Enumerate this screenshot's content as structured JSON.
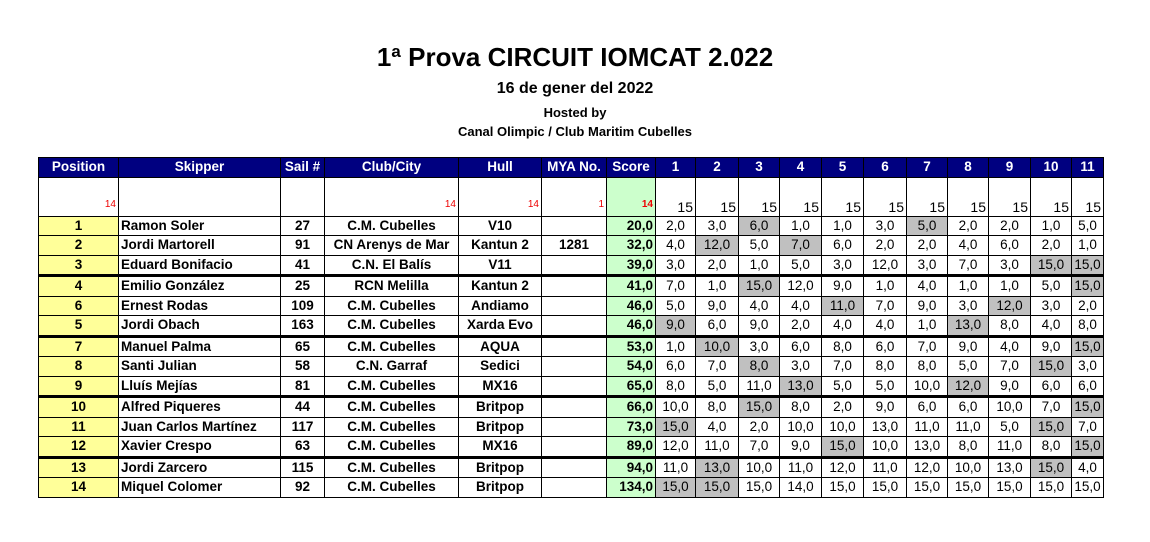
{
  "header": {
    "title": "1ª Prova CIRCUIT IOMCAT 2.022",
    "date": "16 de gener del 2022",
    "hosted_label": "Hosted by",
    "host": "Canal Olimpic / Club Maritim Cubelles"
  },
  "columns": [
    "Position",
    "Skipper",
    "Sail #",
    "Club/City",
    "Hull",
    "MYA No.",
    "Score",
    "1",
    "2",
    "3",
    "4",
    "5",
    "6",
    "7",
    "8",
    "9",
    "10",
    "11"
  ],
  "subheader": {
    "position": "14",
    "club": "14",
    "hull": "14",
    "mya": "1",
    "score": "14",
    "races": [
      "15",
      "15",
      "15",
      "15",
      "15",
      "15",
      "15",
      "15",
      "15",
      "15",
      "15"
    ]
  },
  "rows": [
    {
      "pos": "1",
      "skipper": "Ramon Soler",
      "sail": "27",
      "club": "C.M. Cubelles",
      "hull": "V10",
      "mya": "",
      "score": "20,0",
      "races": [
        "2,0",
        "3,0",
        "6,0",
        "1,0",
        "1,0",
        "3,0",
        "5,0",
        "2,0",
        "2,0",
        "1,0",
        "5,0"
      ],
      "disc": [
        2,
        6
      ]
    },
    {
      "pos": "2",
      "skipper": "Jordi Martorell",
      "sail": "91",
      "club": "CN Arenys de Mar",
      "hull": "Kantun 2",
      "mya": "1281",
      "score": "32,0",
      "races": [
        "4,0",
        "12,0",
        "5,0",
        "7,0",
        "6,0",
        "2,0",
        "2,0",
        "4,0",
        "6,0",
        "2,0",
        "1,0"
      ],
      "disc": [
        1,
        3
      ]
    },
    {
      "pos": "3",
      "skipper": "Eduard Bonifacio",
      "sail": "41",
      "club": "C.N. El Balís",
      "hull": "V11",
      "mya": "",
      "score": "39,0",
      "races": [
        "3,0",
        "2,0",
        "1,0",
        "5,0",
        "3,0",
        "12,0",
        "3,0",
        "7,0",
        "3,0",
        "15,0",
        "15,0"
      ],
      "disc": [
        9,
        10
      ]
    },
    {
      "pos": "4",
      "skipper": "Emilio González",
      "sail": "25",
      "club": "RCN Melilla",
      "hull": "Kantun 2",
      "mya": "",
      "score": "41,0",
      "races": [
        "7,0",
        "1,0",
        "15,0",
        "12,0",
        "9,0",
        "1,0",
        "4,0",
        "1,0",
        "1,0",
        "5,0",
        "15,0"
      ],
      "disc": [
        2,
        10
      ]
    },
    {
      "pos": "6",
      "skipper": "Ernest Rodas",
      "sail": "109",
      "club": "C.M. Cubelles",
      "hull": "Andiamo",
      "mya": "",
      "score": "46,0",
      "races": [
        "5,0",
        "9,0",
        "4,0",
        "4,0",
        "11,0",
        "7,0",
        "9,0",
        "3,0",
        "12,0",
        "3,0",
        "2,0"
      ],
      "disc": [
        4,
        8
      ]
    },
    {
      "pos": "5",
      "skipper": "Jordi Obach",
      "sail": "163",
      "club": "C.M. Cubelles",
      "hull": "Xarda Evo",
      "mya": "",
      "score": "46,0",
      "races": [
        "9,0",
        "6,0",
        "9,0",
        "2,0",
        "4,0",
        "4,0",
        "1,0",
        "13,0",
        "8,0",
        "4,0",
        "8,0"
      ],
      "disc": [
        0,
        7
      ]
    },
    {
      "pos": "7",
      "skipper": "Manuel Palma",
      "sail": "65",
      "club": "C.M. Cubelles",
      "hull": "AQUA",
      "mya": "",
      "score": "53,0",
      "races": [
        "1,0",
        "10,0",
        "3,0",
        "6,0",
        "8,0",
        "6,0",
        "7,0",
        "9,0",
        "4,0",
        "9,0",
        "15,0"
      ],
      "disc": [
        1,
        10
      ]
    },
    {
      "pos": "8",
      "skipper": "Santi Julian",
      "sail": "58",
      "club": "C.N. Garraf",
      "hull": "Sedici",
      "mya": "",
      "score": "54,0",
      "races": [
        "6,0",
        "7,0",
        "8,0",
        "3,0",
        "7,0",
        "8,0",
        "8,0",
        "5,0",
        "7,0",
        "15,0",
        "3,0"
      ],
      "disc": [
        2,
        9
      ]
    },
    {
      "pos": "9",
      "skipper": "Lluís Mejías",
      "sail": "81",
      "club": "C.M. Cubelles",
      "hull": "MX16",
      "mya": "",
      "score": "65,0",
      "races": [
        "8,0",
        "5,0",
        "11,0",
        "13,0",
        "5,0",
        "5,0",
        "10,0",
        "12,0",
        "9,0",
        "6,0",
        "6,0"
      ],
      "disc": [
        3,
        7
      ]
    },
    {
      "pos": "10",
      "skipper": "Alfred Piqueres",
      "sail": "44",
      "club": "C.M. Cubelles",
      "hull": "Britpop",
      "mya": "",
      "score": "66,0",
      "races": [
        "10,0",
        "8,0",
        "15,0",
        "8,0",
        "2,0",
        "9,0",
        "6,0",
        "6,0",
        "10,0",
        "7,0",
        "15,0"
      ],
      "disc": [
        2,
        10
      ]
    },
    {
      "pos": "11",
      "skipper": "Juan Carlos Martínez",
      "sail": "117",
      "club": "C.M. Cubelles",
      "hull": "Britpop",
      "mya": "",
      "score": "73,0",
      "races": [
        "15,0",
        "4,0",
        "2,0",
        "10,0",
        "10,0",
        "13,0",
        "11,0",
        "11,0",
        "5,0",
        "15,0",
        "7,0"
      ],
      "disc": [
        0,
        9
      ]
    },
    {
      "pos": "12",
      "skipper": "Xavier Crespo",
      "sail": "63",
      "club": "C.M. Cubelles",
      "hull": "MX16",
      "mya": "",
      "score": "89,0",
      "races": [
        "12,0",
        "11,0",
        "7,0",
        "9,0",
        "15,0",
        "10,0",
        "13,0",
        "8,0",
        "11,0",
        "8,0",
        "15,0"
      ],
      "disc": [
        4,
        10
      ]
    },
    {
      "pos": "13",
      "skipper": "Jordi Zarcero",
      "sail": "115",
      "club": "C.M. Cubelles",
      "hull": "Britpop",
      "mya": "",
      "score": "94,0",
      "races": [
        "11,0",
        "13,0",
        "10,0",
        "11,0",
        "12,0",
        "11,0",
        "12,0",
        "10,0",
        "13,0",
        "15,0",
        "4,0"
      ],
      "disc": [
        1,
        9
      ]
    },
    {
      "pos": "14",
      "skipper": "Miquel Colomer",
      "sail": "92",
      "club": "C.M. Cubelles",
      "hull": "Britpop",
      "mya": "",
      "score": "134,0",
      "races": [
        "15,0",
        "15,0",
        "15,0",
        "14,0",
        "15,0",
        "15,0",
        "15,0",
        "15,0",
        "15,0",
        "15,0",
        "15,0"
      ],
      "disc": [
        0,
        1
      ]
    }
  ]
}
